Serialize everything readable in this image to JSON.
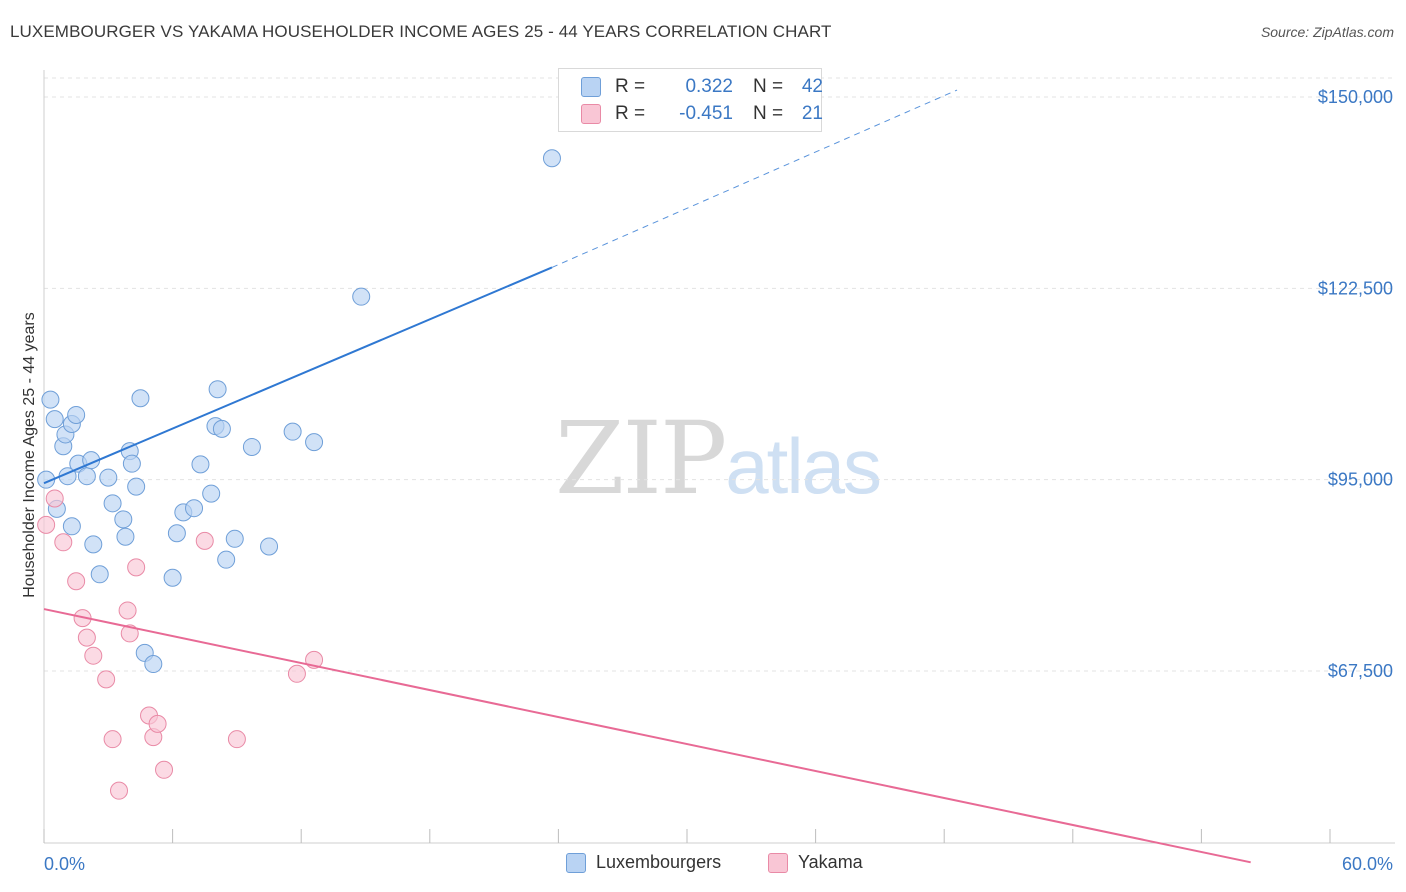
{
  "title": "LUXEMBOURGER VS YAKAMA HOUSEHOLDER INCOME AGES 25 - 44 YEARS CORRELATION CHART",
  "source": "Source: ZipAtlas.com",
  "watermark": {
    "zip": "ZIP",
    "atlas": "atlas"
  },
  "colors": {
    "blue_fill": "#b9d3f3",
    "blue_stroke": "#6f9fd8",
    "blue_line": "#2f78d2",
    "pink_fill": "#f9c6d5",
    "pink_stroke": "#e98aa6",
    "pink_line": "#e86a95",
    "label_blue": "#3b78c4",
    "grid": "#e3e3e3"
  },
  "legend": {
    "rows": [
      {
        "r_label": "R =",
        "r_value": "0.322",
        "n_label": "N =",
        "n_value": "42"
      },
      {
        "r_label": "R =",
        "r_value": "-0.451",
        "n_label": "N =",
        "n_value": "21"
      }
    ]
  },
  "bottom_legend": {
    "luxembourgers": "Luxembourgers",
    "yakama": "Yakama"
  },
  "chart_data": {
    "type": "scatter",
    "title": "LUXEMBOURGER VS YAKAMA HOUSEHOLDER INCOME AGES 25 - 44 YEARS CORRELATION CHART",
    "xlabel": "",
    "ylabel": "Householder Income Ages 25 - 44 years",
    "x_tick_labels": [
      "0.0%",
      "60.0%"
    ],
    "y_tick_labels": [
      "$150,000",
      "$122,500",
      "$95,000",
      "$67,500"
    ],
    "y_ticks": [
      150000,
      122500,
      95000,
      67500
    ],
    "xlim": [
      0,
      60
    ],
    "ylim": [
      40000,
      153000
    ],
    "grid": true,
    "legend_position": "top-center",
    "series": [
      {
        "name": "Luxembourgers",
        "points": [
          [
            0.1,
            95000
          ],
          [
            0.3,
            106500
          ],
          [
            0.5,
            103700
          ],
          [
            0.6,
            90800
          ],
          [
            0.9,
            99800
          ],
          [
            1.0,
            101500
          ],
          [
            1.1,
            95500
          ],
          [
            1.3,
            103000
          ],
          [
            1.3,
            88300
          ],
          [
            1.5,
            104300
          ],
          [
            1.6,
            97300
          ],
          [
            2.0,
            95500
          ],
          [
            2.2,
            97800
          ],
          [
            2.3,
            85700
          ],
          [
            2.6,
            81400
          ],
          [
            3.0,
            95300
          ],
          [
            3.2,
            91600
          ],
          [
            3.7,
            89300
          ],
          [
            3.8,
            86800
          ],
          [
            4.0,
            99100
          ],
          [
            4.1,
            97300
          ],
          [
            4.3,
            94000
          ],
          [
            4.5,
            106700
          ],
          [
            4.7,
            70100
          ],
          [
            5.1,
            68500
          ],
          [
            6.0,
            80900
          ],
          [
            6.2,
            87300
          ],
          [
            6.5,
            90300
          ],
          [
            7.0,
            90900
          ],
          [
            7.3,
            97200
          ],
          [
            7.8,
            93000
          ],
          [
            8.0,
            102700
          ],
          [
            8.1,
            108000
          ],
          [
            8.3,
            102300
          ],
          [
            8.5,
            83500
          ],
          [
            8.9,
            86500
          ],
          [
            9.7,
            99700
          ],
          [
            10.5,
            85400
          ],
          [
            11.6,
            101900
          ],
          [
            12.6,
            100400
          ],
          [
            14.8,
            121300
          ],
          [
            23.7,
            141200
          ]
        ],
        "trend": {
          "x": [
            0,
            23.7
          ],
          "y": [
            94500,
            125500
          ],
          "dashed_to": [
            42.6,
            151000
          ]
        }
      },
      {
        "name": "Yakama",
        "points": [
          [
            0.1,
            88500
          ],
          [
            0.5,
            92300
          ],
          [
            0.9,
            86000
          ],
          [
            1.5,
            80400
          ],
          [
            1.8,
            75100
          ],
          [
            2.0,
            72300
          ],
          [
            2.3,
            69700
          ],
          [
            2.9,
            66300
          ],
          [
            3.2,
            57700
          ],
          [
            3.5,
            50300
          ],
          [
            3.9,
            76200
          ],
          [
            4.0,
            72900
          ],
          [
            4.3,
            82400
          ],
          [
            4.9,
            61100
          ],
          [
            5.1,
            58000
          ],
          [
            5.3,
            59900
          ],
          [
            5.6,
            53300
          ],
          [
            7.5,
            86200
          ],
          [
            9.0,
            57700
          ],
          [
            11.8,
            67100
          ],
          [
            12.6,
            69100
          ]
        ],
        "trend": {
          "x": [
            0,
            56.3
          ],
          "y": [
            76400,
            40000
          ]
        }
      }
    ]
  }
}
